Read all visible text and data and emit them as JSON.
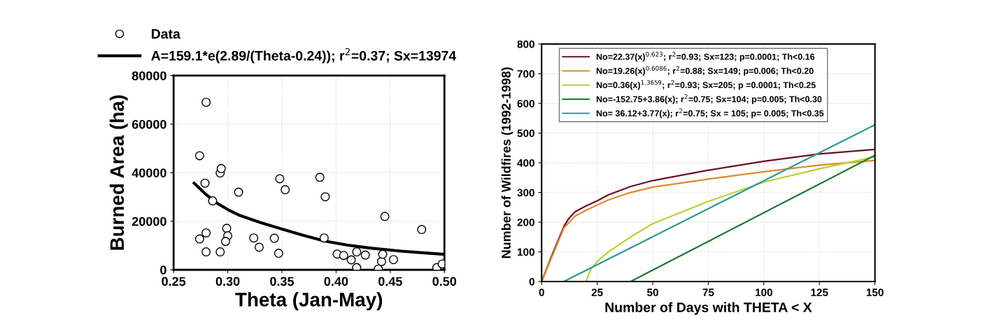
{
  "chart_data": [
    {
      "type": "scatter",
      "xlabel": "Theta (Jan-May)",
      "ylabel": "Burned Area (ha)",
      "xlim": [
        0.25,
        0.5
      ],
      "ylim": [
        0,
        80000
      ],
      "xticks": [
        {
          "value": 0.25,
          "label": "0.25"
        },
        {
          "value": 0.3,
          "label": "0.30"
        },
        {
          "value": 0.35,
          "label": "0.35"
        },
        {
          "value": 0.4,
          "label": "0.40"
        },
        {
          "value": 0.45,
          "label": "0.45"
        },
        {
          "value": 0.5,
          "label": "0.50"
        }
      ],
      "yticks": [
        0,
        20000,
        40000,
        60000,
        80000
      ],
      "grid": true,
      "legend": "top",
      "series": [
        {
          "name": "Data",
          "type": "scatter",
          "marker": "circle",
          "color": "#000000",
          "x": [
            0.28,
            0.274,
            0.279,
            0.286,
            0.293,
            0.294,
            0.31,
            0.274,
            0.28,
            0.28,
            0.293,
            0.299,
            0.3,
            0.298,
            0.324,
            0.329,
            0.343,
            0.347,
            0.348,
            0.353,
            0.385,
            0.39,
            0.389,
            0.401,
            0.407,
            0.414,
            0.419,
            0.419,
            0.427,
            0.439,
            0.442,
            0.443,
            0.445,
            0.453,
            0.479,
            0.493,
            0.498
          ],
          "values": [
            69000,
            47000,
            35700,
            28400,
            39900,
            41700,
            32000,
            12700,
            15200,
            7400,
            7400,
            17100,
            14000,
            11700,
            13100,
            9300,
            13000,
            6800,
            37500,
            33000,
            38100,
            30100,
            13100,
            6500,
            5900,
            4100,
            900,
            7400,
            6100,
            300,
            3400,
            6400,
            22000,
            4200,
            16600,
            900,
            2400
          ]
        },
        {
          "name": "A=159.1*e(2.89/(Theta-0.24)); r$^{2}$=0.37; Sx=13974",
          "type": "line",
          "marker": "none",
          "color": "#000000",
          "x": [
            0.269,
            0.28,
            0.29,
            0.3,
            0.31,
            0.33,
            0.347,
            0.37,
            0.39,
            0.41,
            0.433,
            0.46,
            0.48,
            0.5
          ],
          "values": [
            35700,
            31000,
            27500,
            24800,
            22600,
            19500,
            17200,
            14200,
            11800,
            10200,
            8900,
            7700,
            7000,
            6400
          ]
        }
      ]
    },
    {
      "type": "line",
      "xlabel": "Number of Days with THETA < X",
      "ylabel": "Number of Wildfires (1992-1998)",
      "xlim": [
        0,
        150
      ],
      "ylim": [
        0,
        800
      ],
      "xticks": [
        0,
        25,
        50,
        75,
        100,
        125,
        150
      ],
      "yticks": [
        0,
        100,
        200,
        300,
        400,
        500,
        600,
        700,
        800
      ],
      "grid": true,
      "legend": "top left",
      "series": [
        {
          "name": "No=22.37(x)$^{0.623}$; r$^{2}$=0.93; Sx=123; p=0.0001; Th<0.16",
          "color": "#6b1020",
          "x": [
            0,
            5,
            10,
            12,
            15,
            20,
            25,
            30,
            40,
            50,
            75,
            100,
            125,
            150
          ],
          "values": [
            0,
            95,
            185,
            210,
            235,
            255,
            272,
            292,
            320,
            340,
            375,
            405,
            430,
            445
          ]
        },
        {
          "name": "No=19.26(x)$^{0.6086}$; r$^{2}$=0.88; Sx=149; p=0.006; Th<0.20",
          "color": "#e08a2a",
          "x": [
            0,
            5,
            10,
            15,
            20,
            25,
            30,
            40,
            50,
            75,
            100,
            125,
            150
          ],
          "values": [
            0,
            90,
            180,
            220,
            240,
            258,
            275,
            300,
            318,
            345,
            370,
            392,
            408
          ]
        },
        {
          "name": "No=0.36(x)$^{1.3659}$; r$^{2}$=0.93; Sx=205; p =0.0001; Th<0.25",
          "color": "#b5d334",
          "x": [
            20,
            22,
            25,
            30,
            40,
            50,
            75,
            100,
            125,
            150
          ],
          "values": [
            0,
            40,
            68,
            100,
            150,
            195,
            270,
            335,
            380,
            420
          ]
        },
        {
          "name": "No=-152.75+3.86(x); r$^{2}$=0.75; Sx=104; p=0.005; Th<0.30",
          "color": "#1f7a2e",
          "x": [
            40,
            150
          ],
          "values": [
            0,
            425
          ]
        },
        {
          "name": "No= 36.12+3.77(x); r$^{2}$=0.75; Sx = 105; p= 0.005; Th<0.35",
          "color": "#2a9a9a",
          "x": [
            10,
            150
          ],
          "values": [
            0,
            528
          ]
        }
      ]
    }
  ]
}
